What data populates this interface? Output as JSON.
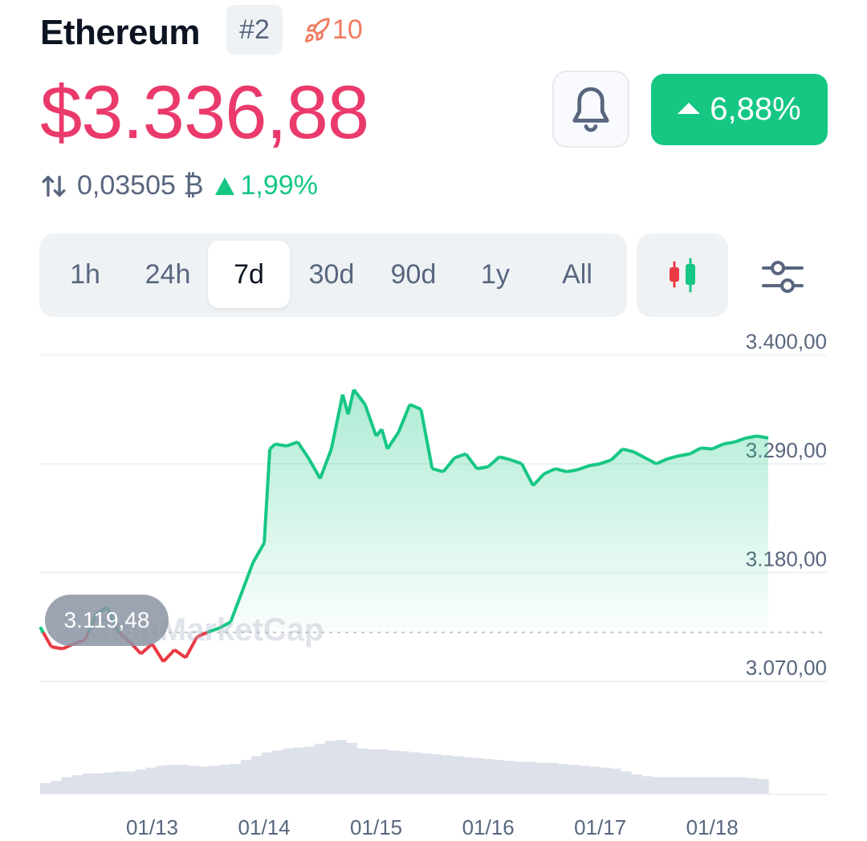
{
  "header": {
    "coin_name": "Ethereum",
    "rank": "#2",
    "trend_count": "10",
    "trend_icon": "rocket-icon"
  },
  "price": {
    "value": "$3.336,88",
    "change_pct": "6,88%",
    "btc_value": "0,03505 ₿",
    "btc_change_pct": "1,99%"
  },
  "colors": {
    "price": "#ea3a6c",
    "up": "#16c784",
    "down": "#ea3943",
    "muted": "#58667e",
    "panel": "#eff2f5"
  },
  "range_tabs": [
    {
      "label": "1h",
      "active": false
    },
    {
      "label": "24h",
      "active": false
    },
    {
      "label": "7d",
      "active": true
    },
    {
      "label": "30d",
      "active": false
    },
    {
      "label": "90d",
      "active": false
    },
    {
      "label": "1y",
      "active": false
    },
    {
      "label": "All",
      "active": false
    }
  ],
  "icons": {
    "bell": "bell-icon",
    "candlestick": "candlestick-icon",
    "settings": "sliders-icon",
    "swap": "swap-arrows-icon"
  },
  "chart_data": {
    "type": "area",
    "watermark": "CoinMarketCap",
    "start_price_label": "3.119,48",
    "baseline": 3119.48,
    "ylim": [
      3045,
      3410
    ],
    "y_ticks": [
      "3.400,00",
      "3.290,00",
      "3.180,00",
      "3.070,00"
    ],
    "y_tick_values": [
      3400,
      3290,
      3180,
      3070
    ],
    "x_ticks": [
      "01/13",
      "01/14",
      "01/15",
      "01/16",
      "01/17",
      "01/18"
    ],
    "x_tick_values": [
      1.0,
      2.0,
      3.0,
      4.0,
      5.0,
      6.0
    ],
    "x_range": [
      0.0,
      6.5
    ],
    "grid": true,
    "series": [
      {
        "x": [
          0.0,
          0.1,
          0.2,
          0.3,
          0.4,
          0.5,
          0.6,
          0.7,
          0.8,
          0.9,
          1.0,
          1.1,
          1.2,
          1.3,
          1.4,
          1.5,
          1.6,
          1.7,
          1.8,
          1.9,
          2.0,
          2.05,
          2.1,
          2.2,
          2.3,
          2.4,
          2.5,
          2.6,
          2.7,
          2.75,
          2.8,
          2.9,
          3.0,
          3.05,
          3.1,
          3.2,
          3.3,
          3.4,
          3.5,
          3.6,
          3.7,
          3.8,
          3.9,
          4.0,
          4.1,
          4.2,
          4.3,
          4.4,
          4.5,
          4.6,
          4.7,
          4.8,
          4.9,
          5.0,
          5.1,
          5.2,
          5.3,
          5.4,
          5.5,
          5.6,
          5.7,
          5.8,
          5.9,
          6.0,
          6.1,
          6.2,
          6.3,
          6.4,
          6.5
        ],
        "values": [
          3125,
          3105,
          3103,
          3108,
          3112,
          3138,
          3145,
          3120,
          3110,
          3098,
          3108,
          3090,
          3102,
          3094,
          3115,
          3120,
          3124,
          3130,
          3160,
          3190,
          3210,
          3305,
          3310,
          3308,
          3312,
          3295,
          3275,
          3305,
          3360,
          3340,
          3365,
          3350,
          3318,
          3325,
          3305,
          3322,
          3350,
          3345,
          3285,
          3282,
          3296,
          3300,
          3285,
          3287,
          3297,
          3294,
          3290,
          3268,
          3280,
          3285,
          3282,
          3284,
          3288,
          3290,
          3294,
          3305,
          3302,
          3296,
          3290,
          3295,
          3298,
          3300,
          3306,
          3305,
          3310,
          3312,
          3316,
          3318,
          3316
        ]
      }
    ],
    "volume": [
      12,
      14,
      18,
      20,
      22,
      22,
      23,
      24,
      24,
      26,
      28,
      30,
      31,
      31,
      30,
      29,
      30,
      31,
      32,
      36,
      40,
      44,
      46,
      48,
      49,
      50,
      53,
      56,
      57,
      54,
      48,
      47,
      47,
      46,
      45,
      44,
      43,
      42,
      41,
      40,
      39,
      38,
      37,
      36,
      35,
      34,
      34,
      33,
      33,
      32,
      31,
      30,
      29,
      28,
      27,
      24,
      21,
      19,
      18,
      18,
      18,
      18,
      18,
      18,
      18,
      18,
      18,
      17,
      16
    ]
  }
}
